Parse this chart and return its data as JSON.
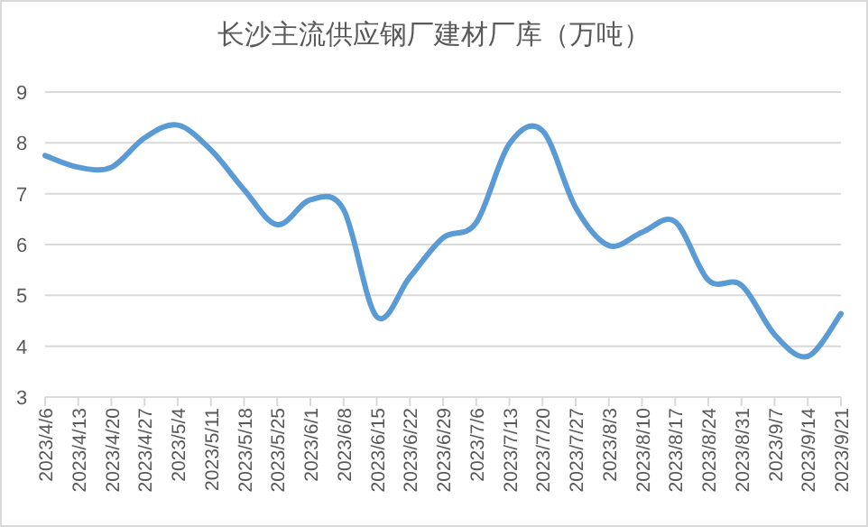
{
  "chart_data": {
    "type": "line",
    "title": "长沙主流供应钢厂建材厂库（万吨）",
    "categories": [
      "2023/4/6",
      "2023/4/13",
      "2023/4/20",
      "2023/4/27",
      "2023/5/4",
      "2023/5/11",
      "2023/5/18",
      "2023/5/25",
      "2023/6/1",
      "2023/6/8",
      "2023/6/15",
      "2023/6/22",
      "2023/6/29",
      "2023/7/6",
      "2023/7/13",
      "2023/7/20",
      "2023/7/27",
      "2023/8/3",
      "2023/8/10",
      "2023/8/17",
      "2023/8/24",
      "2023/8/31",
      "2023/9/7",
      "2023/9/14",
      "2023/9/21"
    ],
    "series": [
      {
        "color": "#5b9bd5",
        "values": [
          7.75,
          7.52,
          7.52,
          8.1,
          8.35,
          7.86,
          7.08,
          6.39,
          6.88,
          6.69,
          4.58,
          5.36,
          6.13,
          6.43,
          7.98,
          8.24,
          6.73,
          5.98,
          6.24,
          6.45,
          5.3,
          5.2,
          4.23,
          3.8,
          4.64
        ]
      }
    ],
    "ylim": [
      3,
      9
    ],
    "yticks": [
      3,
      4,
      5,
      6,
      7,
      8,
      9
    ],
    "grid": "y",
    "marker": "none",
    "line_style": "solid"
  }
}
